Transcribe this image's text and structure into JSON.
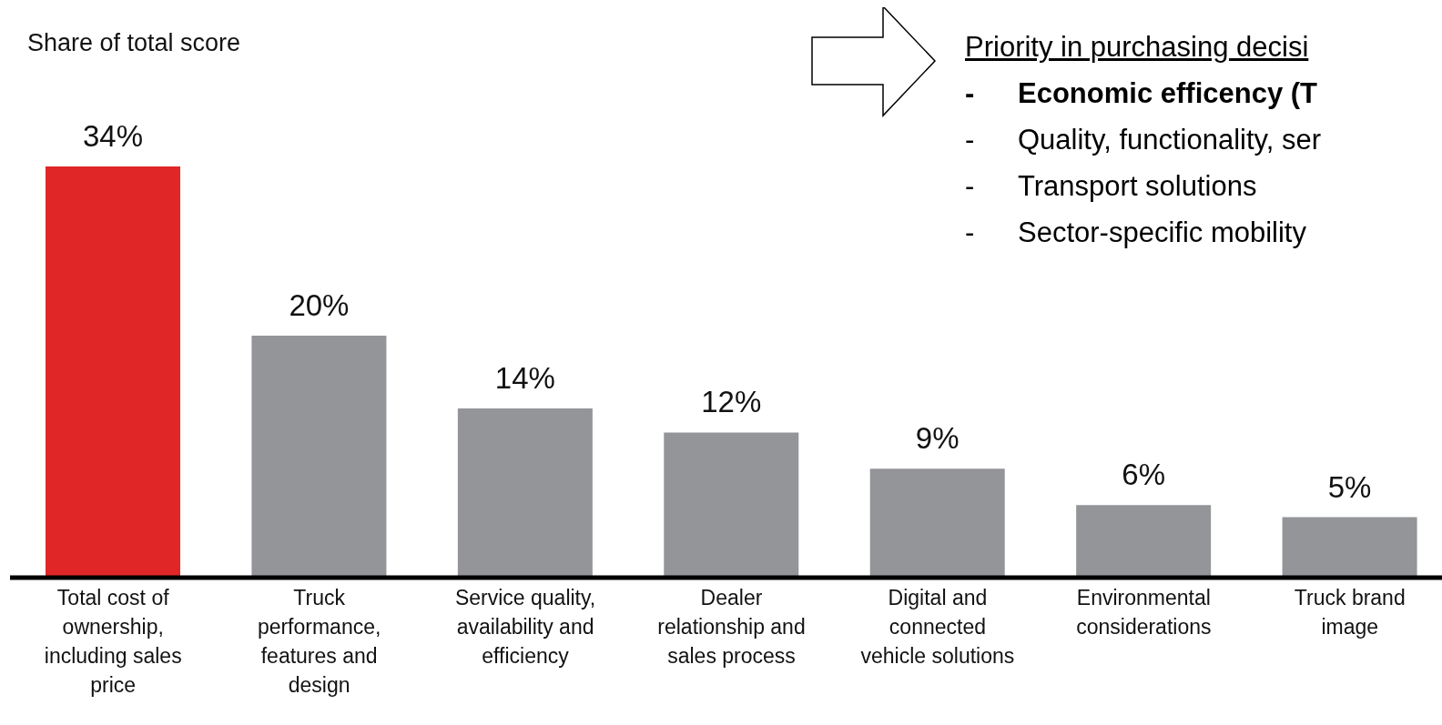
{
  "chart_data": {
    "type": "bar",
    "ylabel": "Share of total score",
    "categories": [
      "Total cost of ownership, including sales price",
      "Truck performance, features and design",
      "Service quality, availability and efficiency",
      "Dealer relationship and sales process",
      "Digital and connected vehicle solutions",
      "Environmental considerations",
      "Truck brand image"
    ],
    "values": [
      34,
      20,
      14,
      12,
      9,
      6,
      5
    ],
    "colors": [
      "#e02626",
      "#939598",
      "#939598",
      "#939598",
      "#939598",
      "#939598",
      "#939598"
    ],
    "value_labels": [
      "34%",
      "20%",
      "14%",
      "12%",
      "9%",
      "6%",
      "5%"
    ],
    "annotations": [
      "Priority in purchasing decisi",
      "- Economic efficency (T",
      "- Quality, functionality, ser",
      "- Transport solutions",
      "- Sector-specific mobility"
    ],
    "grid": false,
    "legend": false
  }
}
